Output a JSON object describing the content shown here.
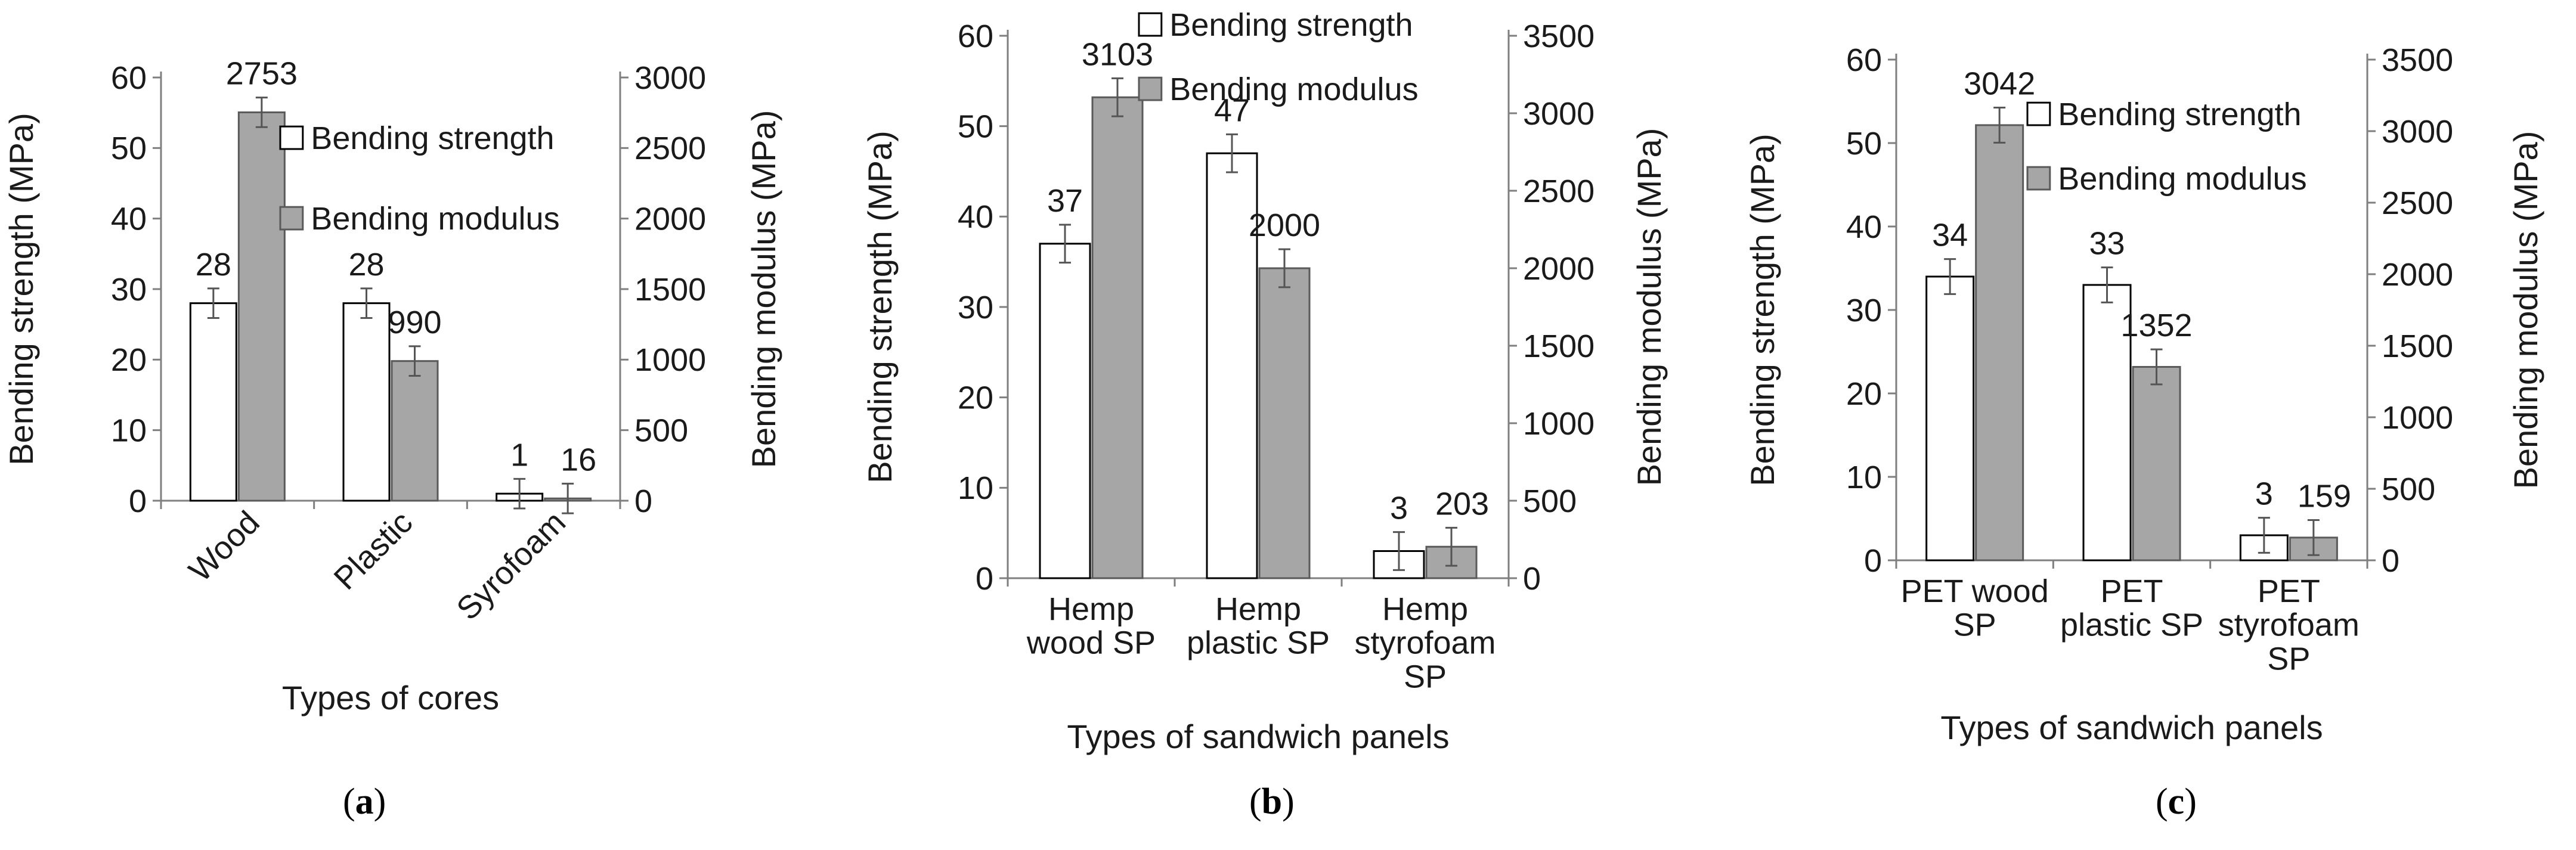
{
  "colors": {
    "strength": "#ffffff",
    "modulus": "#a6a6a6",
    "stroke": "#000000",
    "text": "#1a1a1a"
  },
  "chart_data": [
    {
      "type": "bar",
      "panel_label": "a",
      "categories": [
        "Wood",
        "Plastic",
        "Syrofoam"
      ],
      "xlabel": "Types of cores",
      "ylabel": "Bending strength (MPa)",
      "y2label": "Bending modulus (MPa)",
      "ylim": [
        0,
        60
      ],
      "y2lim": [
        0,
        3000
      ],
      "yticks": [
        0,
        10,
        20,
        30,
        40,
        50,
        60
      ],
      "y2ticks": [
        0,
        500,
        1000,
        1500,
        2000,
        2500,
        3000
      ],
      "legend_placement": "right",
      "tick_rotation": "rotated",
      "series": [
        {
          "name": "Bending strength",
          "axis": "left",
          "values": [
            28,
            28,
            1
          ],
          "labels": [
            "28",
            "28",
            "1"
          ]
        },
        {
          "name": "Bending modulus",
          "axis": "right",
          "values": [
            2753,
            990,
            16
          ],
          "labels": [
            "2753",
            "990",
            "16"
          ]
        }
      ]
    },
    {
      "type": "bar",
      "panel_label": "b",
      "categories": [
        [
          "Hemp",
          "wood SP"
        ],
        [
          "Hemp",
          "plastic SP"
        ],
        [
          "Hemp",
          "styrofoam",
          "SP"
        ]
      ],
      "xlabel": "Types of sandwich panels",
      "ylabel": "Bending strength (MPa)",
      "y2label": "Bending modulus (MPa)",
      "ylim": [
        0,
        60
      ],
      "y2lim": [
        0,
        3500
      ],
      "yticks": [
        0,
        10,
        20,
        30,
        40,
        50,
        60
      ],
      "y2ticks": [
        0,
        500,
        1000,
        1500,
        2000,
        2500,
        3000,
        3500
      ],
      "legend_placement": "top-right",
      "tick_rotation": "none",
      "series": [
        {
          "name": "Bending strength",
          "axis": "left",
          "values": [
            37,
            47,
            3
          ],
          "labels": [
            "37",
            "47",
            "3"
          ]
        },
        {
          "name": "Bending modulus",
          "axis": "right",
          "values": [
            3103,
            2000,
            203
          ],
          "labels": [
            "3103",
            "2000",
            "203"
          ]
        }
      ]
    },
    {
      "type": "bar",
      "panel_label": "c",
      "categories": [
        [
          "PET wood",
          "SP"
        ],
        [
          "PET",
          "plastic SP"
        ],
        [
          "PET",
          "styrofoam",
          "SP"
        ]
      ],
      "xlabel": "Types of sandwich panels",
      "ylabel": "Bending strength (MPa)",
      "y2label": "Bending modulus (MPa)",
      "ylim": [
        0,
        60
      ],
      "y2lim": [
        0,
        3500
      ],
      "yticks": [
        0,
        10,
        20,
        30,
        40,
        50,
        60
      ],
      "y2ticks": [
        0,
        500,
        1000,
        1500,
        2000,
        2500,
        3000,
        3500
      ],
      "legend_placement": "top-right",
      "tick_rotation": "none",
      "series": [
        {
          "name": "Bending strength",
          "axis": "left",
          "values": [
            34,
            33,
            3
          ],
          "labels": [
            "34",
            "33",
            "3"
          ]
        },
        {
          "name": "Bending modulus",
          "axis": "right",
          "values": [
            3042,
            1352,
            159
          ],
          "labels": [
            "3042",
            "1352",
            "159"
          ]
        }
      ]
    }
  ]
}
